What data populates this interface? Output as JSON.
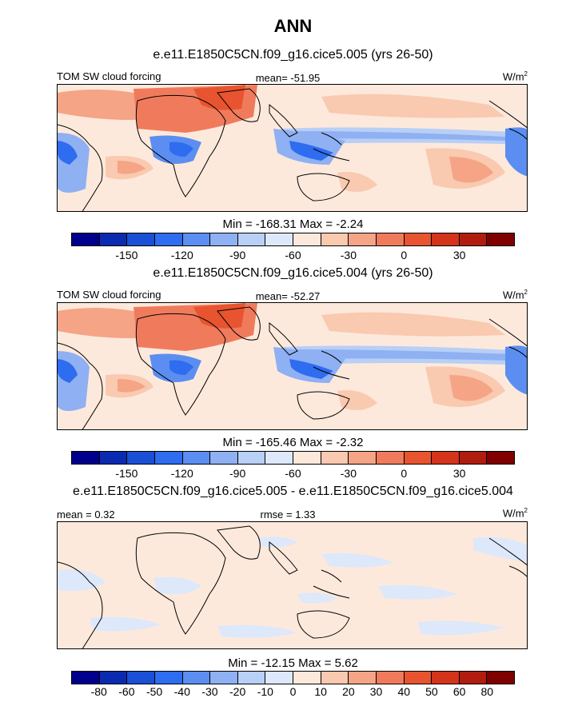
{
  "title": "ANN",
  "panels": [
    {
      "title": "e.e11.E1850C5CN.f09_g16.cice5.005 (yrs 26-50)",
      "left_label": "TOM SW cloud forcing",
      "center_label": "mean= -51.95",
      "unit": "W/m",
      "unit_sup": "2",
      "minmax": "Min = -168.31 Max =  -2.24"
    },
    {
      "title": "e.e11.E1850C5CN.f09_g16.cice5.004 (yrs 26-50)",
      "left_label": "TOM SW cloud forcing",
      "center_label": "mean= -52.27",
      "unit": "W/m",
      "unit_sup": "2",
      "minmax": "Min = -165.46 Max =  -2.32"
    },
    {
      "title": "e.e11.E1850C5CN.f09_g16.cice5.005 - e.e11.E1850C5CN.f09_g16.cice5.004",
      "left_label": "mean =   0.32",
      "center_label": "rmse =   1.33",
      "unit": "W/m",
      "unit_sup": "2",
      "minmax": "Min = -12.15 Max =   5.62"
    }
  ],
  "colorbar_colors": [
    "#00008c",
    "#0a2bb0",
    "#1a4fd6",
    "#2e6cf0",
    "#5b8ef0",
    "#8fb0f2",
    "#b8cff6",
    "#dde8fb",
    "#fde9dc",
    "#f9c9b0",
    "#f5a486",
    "#f07b5c",
    "#e8542f",
    "#d4341a",
    "#b01d0f",
    "#800000"
  ],
  "colorbar_fields": {
    "ticks": [
      "-150",
      "-120",
      "-90",
      "-60",
      "-30",
      "0",
      "30"
    ]
  },
  "colorbar_diff": {
    "ticks": [
      "-80",
      "-60",
      "-50",
      "-40",
      "-30",
      "-20",
      "-10",
      "0",
      "10",
      "20",
      "30",
      "40",
      "50",
      "60",
      "80"
    ]
  }
}
